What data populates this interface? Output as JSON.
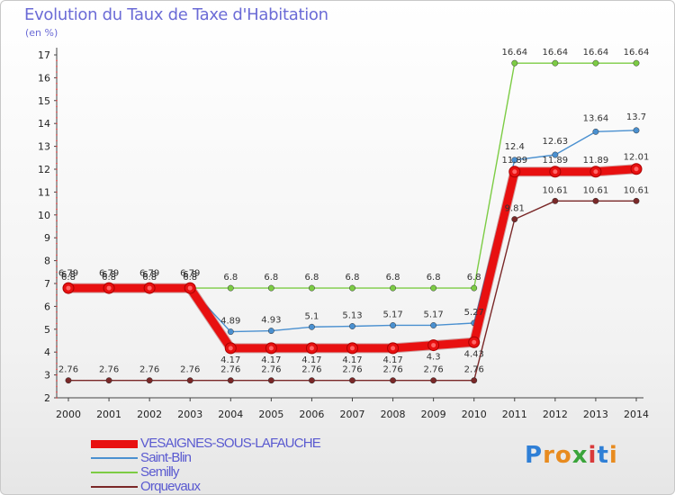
{
  "title": "Evolution du Taux de Taxe d'Habitation",
  "subtitle": "(en %)",
  "logo": {
    "letters": [
      "P",
      "r",
      "o",
      "x",
      "i",
      "t",
      "i"
    ],
    "colors": [
      "#2f7fd6",
      "#e88b1f",
      "#e88b1f",
      "#3aa43a",
      "#d93a3a",
      "#2f7fd6",
      "#e88b1f"
    ]
  },
  "chart_data": {
    "type": "line",
    "title": "Evolution du Taux de Taxe d'Habitation",
    "ylabel": "(en %)",
    "xlabel": "",
    "ylim": [
      2,
      17
    ],
    "yticks": [
      "2",
      "3",
      "4",
      "5",
      "6",
      "7",
      "8",
      "9",
      "10",
      "11",
      "12",
      "13",
      "14",
      "15",
      "16",
      "17"
    ],
    "x": [
      "2000",
      "2001",
      "2002",
      "2003",
      "2004",
      "2005",
      "2006",
      "2007",
      "2008",
      "2009",
      "2010",
      "2011",
      "2012",
      "2013",
      "2014"
    ],
    "series": [
      {
        "name": "VESAIGNES-SOUS-LAFAUCHE",
        "color": "#e81010",
        "width": "heavy",
        "values": [
          6.8,
          6.8,
          6.8,
          6.8,
          4.17,
          4.17,
          4.17,
          4.17,
          4.17,
          4.3,
          4.43,
          11.89,
          11.89,
          11.89,
          12.01
        ],
        "labels": [
          "6.8",
          "6.8",
          "6.8",
          "6.8",
          "4.17",
          "4.17",
          "4.17",
          "4.17",
          "4.17",
          "4.3",
          "4.43",
          "11.89",
          "11.89",
          "11.89",
          "12.01"
        ]
      },
      {
        "name": "Saint-Blin",
        "color": "#4a90d0",
        "width": "thin",
        "values": [
          6.79,
          6.79,
          6.79,
          6.79,
          4.89,
          4.93,
          5.1,
          5.13,
          5.17,
          5.17,
          5.27,
          12.4,
          12.63,
          13.64,
          13.7
        ],
        "labels": [
          "6.79",
          "6.79",
          "6.79",
          "6.79",
          "4.89",
          "4.93",
          "5.1",
          "5.13",
          "5.17",
          "5.17",
          "5.27",
          "12.4",
          "12.63",
          "13.64",
          "13.7"
        ]
      },
      {
        "name": "Semilly",
        "color": "#7ccc44",
        "width": "thin",
        "values": [
          6.8,
          6.8,
          6.8,
          6.8,
          6.8,
          6.8,
          6.8,
          6.8,
          6.8,
          6.8,
          6.8,
          16.64,
          16.64,
          16.64,
          16.64
        ],
        "labels": [
          "6.8",
          "6.8",
          "6.8",
          "6.8",
          "6.8",
          "6.8",
          "6.8",
          "6.8",
          "6.8",
          "6.8",
          "6.8",
          "16.64",
          "16.64",
          "16.64",
          "16.64"
        ]
      },
      {
        "name": "Orquevaux",
        "color": "#7a2828",
        "width": "thin",
        "values": [
          2.76,
          2.76,
          2.76,
          2.76,
          2.76,
          2.76,
          2.76,
          2.76,
          2.76,
          2.76,
          2.76,
          9.81,
          10.61,
          10.61,
          10.61
        ],
        "labels": [
          "2.76",
          "2.76",
          "2.76",
          "2.76",
          "2.76",
          "2.76",
          "2.76",
          "2.76",
          "2.76",
          "2.76",
          "2.76",
          "9.81",
          "10.61",
          "10.61",
          "10.61"
        ]
      }
    ],
    "legend": [
      "VESAIGNES-SOUS-LAFAUCHE",
      "Saint-Blin",
      "Semilly",
      "Orquevaux"
    ],
    "legend_position": "bottom-left"
  }
}
